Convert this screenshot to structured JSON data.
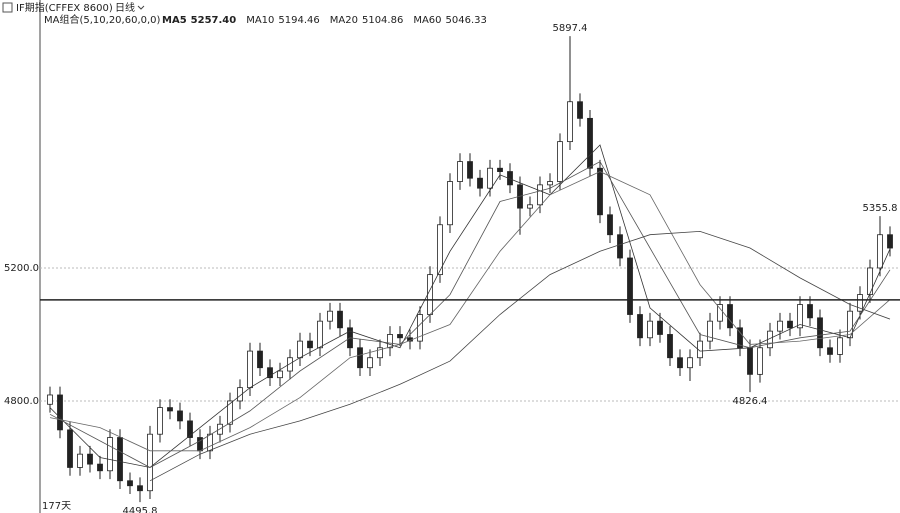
{
  "chart_data": {
    "type": "candlestick",
    "title": "IF期指(CFFEX 8600)",
    "period": "日线",
    "indicator": "MA组合(5,10,20,60,0,0)",
    "day_count": "177天",
    "ylim": [
      4463,
      6006
    ],
    "yticks": [
      {
        "value": 5200,
        "label": "5200.0"
      },
      {
        "value": 4800,
        "label": "4800.0"
      }
    ],
    "grid": true,
    "hline": 5104,
    "up_color": "#ffffff",
    "down_color": "#222222",
    "edge_color": "#222222",
    "open": [
      4790,
      4818,
      4713,
      4600,
      4640,
      4610,
      4590,
      4690,
      4560,
      4545,
      4530,
      4700,
      4780,
      4770,
      4740,
      4690,
      4650,
      4700,
      4730,
      4800,
      4840,
      4950,
      4900,
      4870,
      4890,
      4930,
      4980,
      4960,
      5040,
      5070,
      5020,
      4960,
      4900,
      4930,
      4960,
      5000,
      4990,
      4980,
      5060,
      5180,
      5330,
      5460,
      5520,
      5470,
      5440,
      5500,
      5490,
      5450,
      5380,
      5390,
      5450,
      5460,
      5580,
      5700,
      5650,
      5500,
      5360,
      5300,
      5230,
      5060,
      4990,
      5040,
      5000,
      4930,
      4900,
      4930,
      4980,
      5040,
      5090,
      5020,
      4960,
      4880,
      4960,
      5010,
      5040,
      5020,
      5090,
      5050,
      4960,
      4940,
      4990,
      5070,
      5120,
      5200,
      5300
    ],
    "high": [
      4843,
      4843,
      4738,
      4665,
      4665,
      4635,
      4715,
      4715,
      4585,
      4570,
      4725,
      4805,
      4805,
      4795,
      4765,
      4715,
      4725,
      4755,
      4825,
      4865,
      4975,
      4975,
      4925,
      4915,
      4955,
      5005,
      5005,
      5065,
      5095,
      5095,
      5045,
      4985,
      4955,
      4985,
      5025,
      5025,
      5015,
      5085,
      5205,
      5355,
      5485,
      5545,
      5545,
      5495,
      5525,
      5525,
      5515,
      5475,
      5415,
      5475,
      5485,
      5605,
      5897.4,
      5725,
      5675,
      5525,
      5385,
      5325,
      5255,
      5085,
      5065,
      5065,
      5025,
      4955,
      4955,
      5005,
      5065,
      5115,
      5115,
      5045,
      4985,
      4985,
      5035,
      5065,
      5065,
      5115,
      5115,
      5075,
      4985,
      5015,
      5095,
      5145,
      5225,
      5355.8,
      5325
    ],
    "low": [
      4765,
      4688,
      4575,
      4575,
      4585,
      4565,
      4565,
      4535,
      4520,
      4495.8,
      4505,
      4675,
      4745,
      4715,
      4665,
      4625,
      4625,
      4675,
      4705,
      4775,
      4815,
      4875,
      4845,
      4845,
      4865,
      4905,
      4935,
      4935,
      5015,
      4995,
      4935,
      4875,
      4875,
      4905,
      4935,
      4965,
      4955,
      4955,
      5035,
      5155,
      5305,
      5435,
      5445,
      5415,
      5415,
      5465,
      5425,
      5300,
      5355,
      5365,
      5425,
      5435,
      5555,
      5625,
      5475,
      5335,
      5275,
      5205,
      5035,
      4965,
      4965,
      4975,
      4905,
      4875,
      4860,
      4905,
      4955,
      5015,
      4995,
      4935,
      4826.4,
      4855,
      4935,
      4985,
      4995,
      4995,
      5025,
      4935,
      4915,
      4915,
      4965,
      5045,
      5095,
      5175,
      5235
    ],
    "close": [
      4818,
      4713,
      4600,
      4640,
      4610,
      4590,
      4690,
      4560,
      4545,
      4530,
      4700,
      4780,
      4770,
      4740,
      4690,
      4650,
      4700,
      4730,
      4800,
      4840,
      4950,
      4900,
      4870,
      4890,
      4930,
      4980,
      4960,
      5040,
      5070,
      5020,
      4960,
      4900,
      4930,
      4960,
      5000,
      4990,
      4980,
      5060,
      5180,
      5330,
      5460,
      5520,
      5470,
      5440,
      5500,
      5490,
      5450,
      5380,
      5390,
      5450,
      5460,
      5580,
      5700,
      5650,
      5500,
      5360,
      5300,
      5230,
      5060,
      4990,
      5040,
      5000,
      4930,
      4900,
      4930,
      4980,
      5040,
      5090,
      5020,
      4960,
      4880,
      4960,
      5010,
      5040,
      5020,
      5090,
      5050,
      4960,
      4940,
      4990,
      5070,
      5120,
      5200,
      5300,
      5260
    ],
    "annotations": [
      {
        "value": 5897.4,
        "label": "5897.4",
        "at": "high"
      },
      {
        "value": 5355.8,
        "label": "5355.8",
        "at": "high"
      },
      {
        "value": 4826.4,
        "label": "4826.4",
        "at": "low"
      },
      {
        "value": 4495.8,
        "label": "4495.8",
        "at": "low"
      }
    ],
    "series": [
      {
        "name": "MA5",
        "current": "5257.40",
        "color": "#333333",
        "x": [
          0,
          5,
          10,
          15,
          20,
          25,
          30,
          35,
          40,
          45,
          50,
          55,
          60,
          65,
          70,
          75,
          80,
          84
        ],
        "values": [
          4780,
          4630,
          4600,
          4720,
          4840,
          4930,
          5010,
          4960,
          5250,
          5480,
          5420,
          5570,
          5080,
          4950,
          4960,
          5030,
          4990,
          5257.4
        ]
      },
      {
        "name": "MA10",
        "current": "5194.46",
        "color": "#555555",
        "x": [
          0,
          5,
          10,
          15,
          20,
          25,
          30,
          35,
          40,
          45,
          50,
          55,
          60,
          65,
          70,
          75,
          80,
          84
        ],
        "values": [
          4760,
          4680,
          4600,
          4680,
          4770,
          4890,
          4990,
          4970,
          5120,
          5400,
          5440,
          5520,
          5260,
          5000,
          4960,
          4990,
          5010,
          5194.46
        ]
      },
      {
        "name": "MA20",
        "current": "5104.86",
        "color": "#666666",
        "x": [
          0,
          5,
          10,
          15,
          20,
          25,
          30,
          35,
          40,
          45,
          50,
          55,
          60,
          65,
          70,
          75,
          80,
          84
        ],
        "values": [
          4750,
          4720,
          4650,
          4650,
          4720,
          4810,
          4930,
          4970,
          5030,
          5250,
          5420,
          5490,
          5420,
          5150,
          4970,
          4980,
          5000,
          5104.86
        ]
      },
      {
        "name": "MA60",
        "current": "5046.33",
        "color": "#444444",
        "x": [
          10,
          15,
          20,
          25,
          30,
          35,
          40,
          45,
          50,
          55,
          60,
          65,
          70,
          75,
          80,
          84
        ],
        "values": [
          4560,
          4640,
          4700,
          4740,
          4790,
          4850,
          4920,
          5060,
          5180,
          5250,
          5300,
          5310,
          5260,
          5170,
          5090,
          5046.33
        ]
      }
    ]
  }
}
